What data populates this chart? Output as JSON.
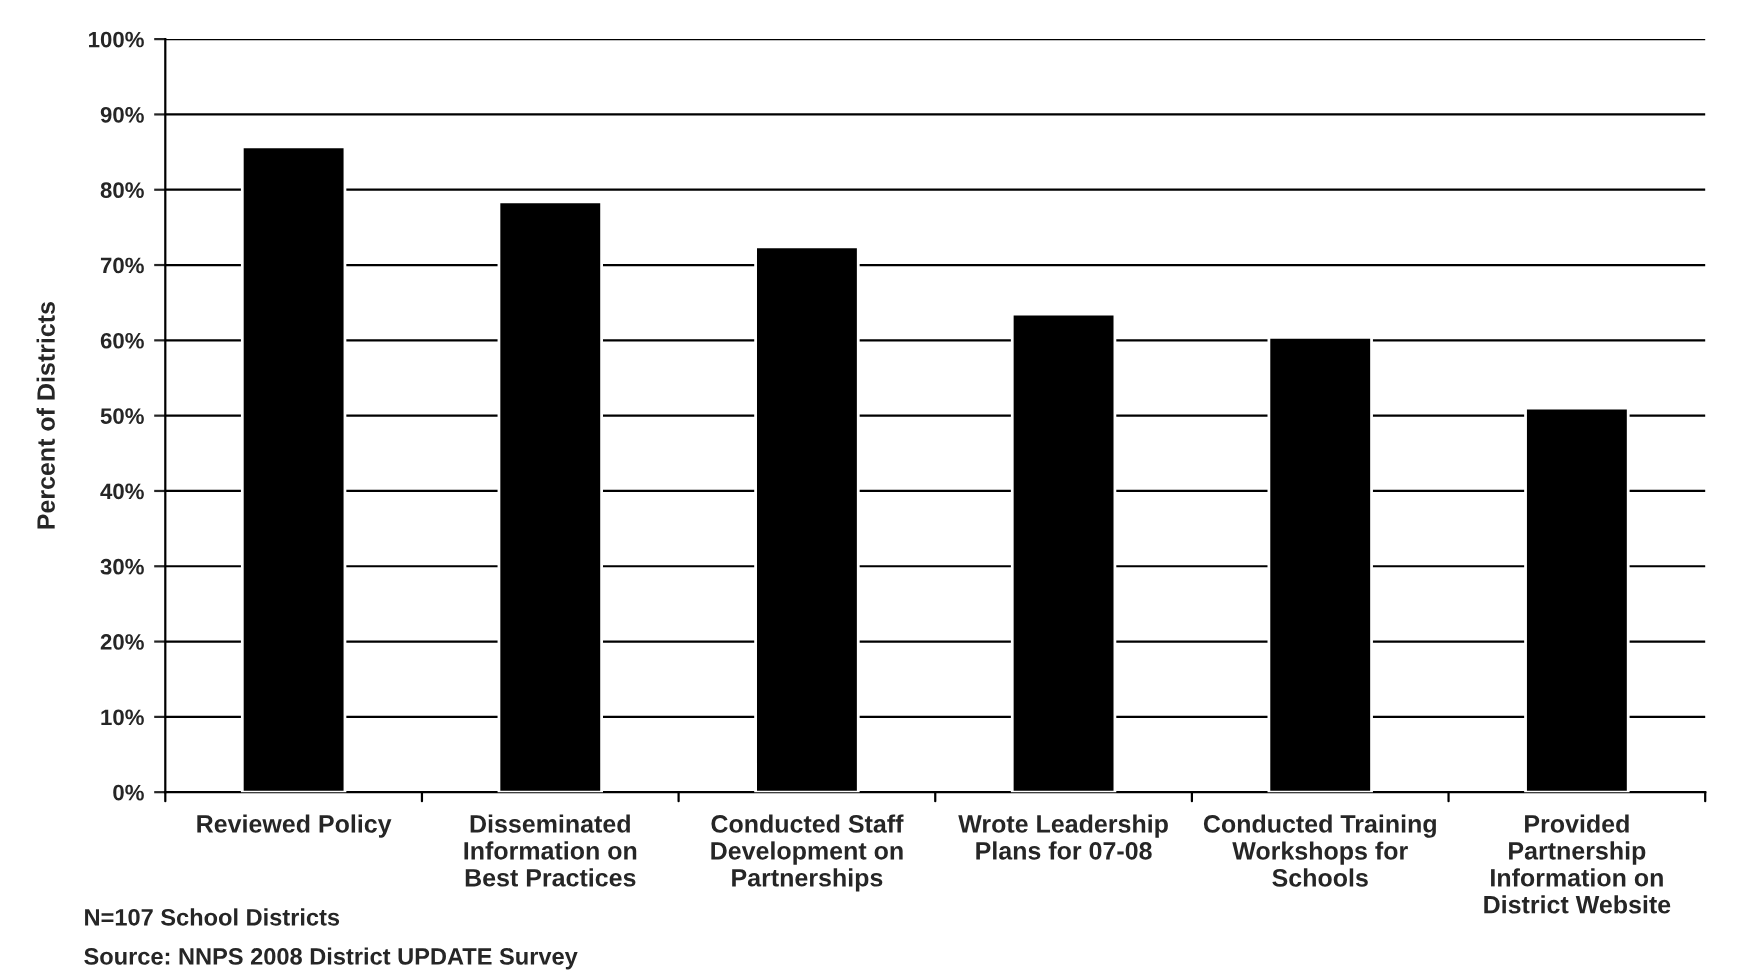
{
  "chart_data": {
    "type": "bar",
    "categories": [
      "Reviewed Policy",
      "Disseminated\nInformation on\nBest Practices",
      "Conducted Staff\nDevelopment on\nPartnerships",
      "Wrote Leadership\nPlans for 07-08",
      "Conducted Training\nWorkshops for\nSchools",
      "Provided\nPartnership\nInformation on\nDistrict Website"
    ],
    "values": [
      85.7,
      78.4,
      72.4,
      63.5,
      60.4,
      51
    ],
    "color": "#000000",
    "ylabel": "Percent of Districts",
    "ylim": [
      0,
      100
    ],
    "yticks": [
      {
        "value": 0,
        "label": "0%"
      },
      {
        "value": 10,
        "label": "10%"
      },
      {
        "value": 20,
        "label": "20%"
      },
      {
        "value": 30,
        "label": "30%"
      },
      {
        "value": 40,
        "label": "40%"
      },
      {
        "value": 50,
        "label": "50%"
      },
      {
        "value": 60,
        "label": "60%"
      },
      {
        "value": 70,
        "label": "70%"
      },
      {
        "value": 80,
        "label": "80%"
      },
      {
        "value": 90,
        "label": "90%"
      },
      {
        "value": 100,
        "label": "100%"
      }
    ],
    "grid": "y",
    "annotations": [
      "N=107 School Districts",
      "Source: NNPS 2008 District UPDATE Survey"
    ]
  }
}
